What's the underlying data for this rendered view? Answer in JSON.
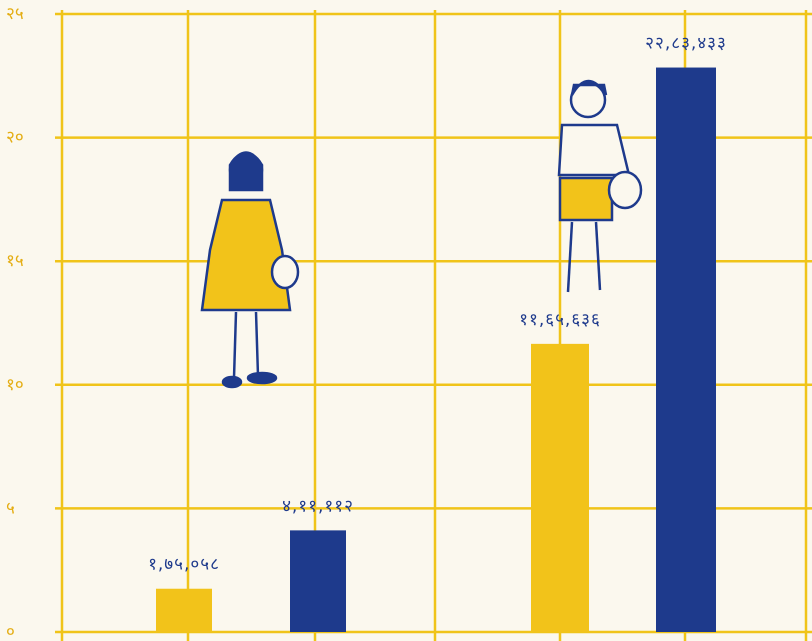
{
  "chart_data": {
    "type": "bar",
    "categories": [
      null,
      null,
      null,
      null
    ],
    "values": [
      1.75058,
      4.11112,
      11.65636,
      22.83433
    ],
    "value_labels": [
      "१,७५,०५८",
      "४,११,११२",
      "११,६५,६३६",
      "२२,८३,४३३"
    ],
    "colors": [
      "#f2c31a",
      "#1e3a8c",
      "#f2c31a",
      "#1e3a8c"
    ],
    "ylim": [
      0,
      25
    ],
    "yticks": [
      {
        "value": 0,
        "label": "०"
      },
      {
        "value": 5,
        "label": "५"
      },
      {
        "value": 10,
        "label": "१०"
      },
      {
        "value": 15,
        "label": "१५"
      },
      {
        "value": 20,
        "label": "२०"
      },
      {
        "value": 25,
        "label": "२५"
      }
    ],
    "grid": true
  }
}
